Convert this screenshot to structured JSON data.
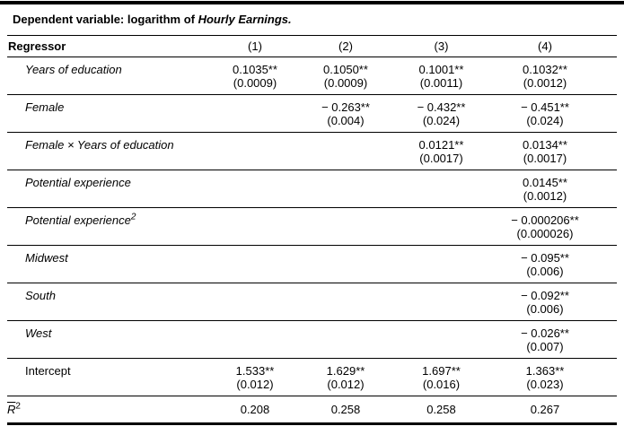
{
  "title": {
    "prefix": "Dependent variable: logarithm of ",
    "emphasis": "Hourly Earnings."
  },
  "header": {
    "regressor_label": "Regressor",
    "columns": [
      "(1)",
      "(2)",
      "(3)",
      "(4)"
    ]
  },
  "rows": [
    {
      "label": "Years of education",
      "sup": "",
      "cells": [
        {
          "coef": "0.1035**",
          "se": "(0.0009)"
        },
        {
          "coef": "0.1050**",
          "se": "(0.0009)"
        },
        {
          "coef": "0.1001**",
          "se": "(0.0011)"
        },
        {
          "coef": "0.1032**",
          "se": "(0.0012)"
        }
      ]
    },
    {
      "label": "Female",
      "sup": "",
      "cells": [
        {
          "coef": "",
          "se": ""
        },
        {
          "coef": "− 0.263**",
          "se": "(0.004)"
        },
        {
          "coef": "− 0.432**",
          "se": "(0.024)"
        },
        {
          "coef": "− 0.451**",
          "se": "(0.024)"
        }
      ]
    },
    {
      "label": "Female × Years of education",
      "sup": "",
      "cells": [
        {
          "coef": "",
          "se": ""
        },
        {
          "coef": "",
          "se": ""
        },
        {
          "coef": "0.0121**",
          "se": "(0.0017)"
        },
        {
          "coef": "0.0134**",
          "se": "(0.0017)"
        }
      ]
    },
    {
      "label": "Potential experience",
      "sup": "",
      "cells": [
        {
          "coef": "",
          "se": ""
        },
        {
          "coef": "",
          "se": ""
        },
        {
          "coef": "",
          "se": ""
        },
        {
          "coef": "0.0145**",
          "se": "(0.0012)"
        }
      ]
    },
    {
      "label": "Potential experience",
      "sup": "2",
      "cells": [
        {
          "coef": "",
          "se": ""
        },
        {
          "coef": "",
          "se": ""
        },
        {
          "coef": "",
          "se": ""
        },
        {
          "coef": "− 0.000206**",
          "se": "(0.000026)"
        }
      ]
    },
    {
      "label": "Midwest",
      "sup": "",
      "cells": [
        {
          "coef": "",
          "se": ""
        },
        {
          "coef": "",
          "se": ""
        },
        {
          "coef": "",
          "se": ""
        },
        {
          "coef": "− 0.095**",
          "se": "(0.006)"
        }
      ]
    },
    {
      "label": "South",
      "sup": "",
      "cells": [
        {
          "coef": "",
          "se": ""
        },
        {
          "coef": "",
          "se": ""
        },
        {
          "coef": "",
          "se": ""
        },
        {
          "coef": "− 0.092**",
          "se": "(0.006)"
        }
      ]
    },
    {
      "label": "West",
      "sup": "",
      "cells": [
        {
          "coef": "",
          "se": ""
        },
        {
          "coef": "",
          "se": ""
        },
        {
          "coef": "",
          "se": ""
        },
        {
          "coef": "− 0.026**",
          "se": "(0.007)"
        }
      ]
    },
    {
      "label": "Intercept",
      "sup": "",
      "cells": [
        {
          "coef": "1.533**",
          "se": "(0.012)"
        },
        {
          "coef": "1.629**",
          "se": "(0.012)"
        },
        {
          "coef": "1.697**",
          "se": "(0.016)"
        },
        {
          "coef": "1.363**",
          "se": "(0.023)"
        }
      ]
    }
  ],
  "summary_row": {
    "label_base": "R",
    "label_sup": "2",
    "values": [
      "0.208",
      "0.258",
      "0.258",
      "0.267"
    ]
  },
  "colors": {
    "text": "#000000",
    "rule": "#000000",
    "background": "#ffffff"
  }
}
